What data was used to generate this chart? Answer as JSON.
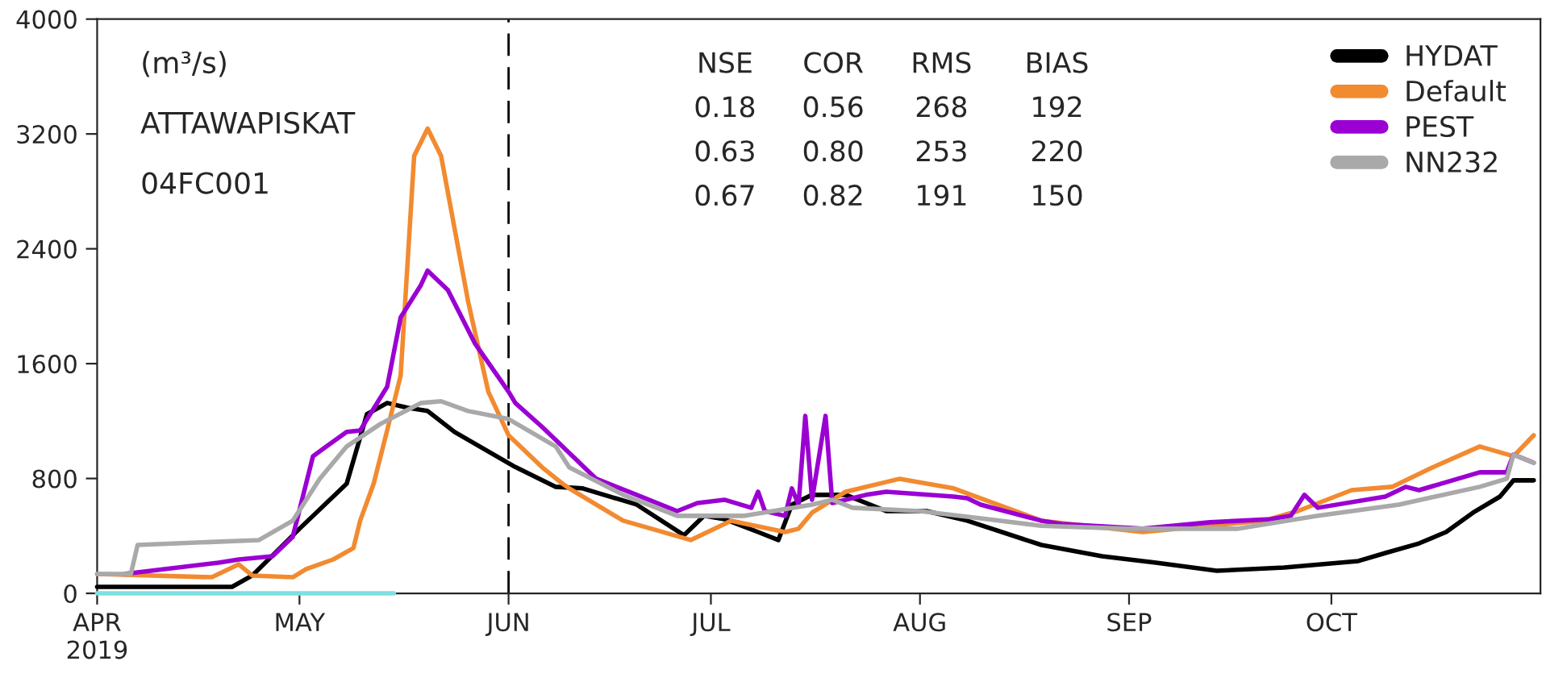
{
  "chart_data": {
    "type": "line",
    "annotations": [
      "(m³/s)",
      "ATTAWAPISKAT",
      "04FC001",
      "NSE",
      "COR",
      "RMS",
      "BIAS",
      "0.18",
      "0.56",
      "268",
      "192",
      "0.63",
      "0.80",
      "253",
      "220",
      "0.67",
      "0.82",
      "191",
      "150"
    ],
    "xlim": [
      "2019-04-01",
      "2019-11-01"
    ],
    "xticks": [
      {
        "value": "2019-04-01",
        "label": "APR\n2019"
      },
      {
        "value": "2019-05-01",
        "label": "MAY"
      },
      {
        "value": "2019-06-01",
        "label": "JUN"
      },
      {
        "value": "2019-07-01",
        "label": "JUL"
      },
      {
        "value": "2019-08-01",
        "label": "AUG"
      },
      {
        "value": "2019-09-01",
        "label": "SEP"
      },
      {
        "value": "2019-10-01",
        "label": "OCT"
      }
    ],
    "ylim": [
      0,
      4000
    ],
    "yticks": [
      0,
      800,
      1600,
      2400,
      3200,
      4000
    ],
    "grid": false,
    "legend": "top right",
    "ref_lines": [
      {
        "axis": "x",
        "value": "2019-06-01",
        "label": null,
        "color": "#000000",
        "line_style": "dashed"
      }
    ],
    "series": [
      {
        "color": "#7fdfdf",
        "x": [
          "2019-04-01",
          "2019-05-15"
        ],
        "values": [
          0,
          0
        ]
      },
      {
        "name": "HYDAT",
        "color": "#000000",
        "x": [
          "2019-04-01",
          "2019-04-21",
          "2019-04-24",
          "2019-05-01",
          "2019-05-08",
          "2019-05-11",
          "2019-05-14",
          "2019-05-17",
          "2019-05-20",
          "2019-05-24",
          "2019-06-02",
          "2019-06-08",
          "2019-06-12",
          "2019-06-20",
          "2019-06-27",
          "2019-06-30",
          "2019-07-03",
          "2019-07-08",
          "2019-07-11",
          "2019-07-13",
          "2019-07-16",
          "2019-07-21",
          "2019-07-27",
          "2019-08-02",
          "2019-08-08",
          "2019-08-19",
          "2019-08-28",
          "2019-09-05",
          "2019-09-14",
          "2019-09-24",
          "2019-10-05",
          "2019-10-09",
          "2019-10-14",
          "2019-10-18",
          "2019-10-22",
          "2019-10-26",
          "2019-10-28",
          "2019-10-31"
        ],
        "values": [
          45,
          45,
          124,
          450,
          764,
          1248,
          1326,
          1293,
          1270,
          1124,
          880,
          742,
          731,
          618,
          405,
          540,
          517,
          427,
          371,
          618,
          686,
          686,
          573,
          573,
          506,
          337,
          259,
          214,
          157,
          180,
          225,
          281,
          348,
          427,
          562,
          674,
          787,
          787
        ]
      },
      {
        "name": "Default",
        "color": "#f28a30",
        "x": [
          "2019-04-01",
          "2019-04-18",
          "2019-04-22",
          "2019-04-24",
          "2019-04-30",
          "2019-05-02",
          "2019-05-06",
          "2019-05-09",
          "2019-05-10",
          "2019-05-12",
          "2019-05-14",
          "2019-05-16",
          "2019-05-18",
          "2019-05-20",
          "2019-05-22",
          "2019-05-26",
          "2019-05-29",
          "2019-06-01",
          "2019-06-06",
          "2019-06-09",
          "2019-06-10",
          "2019-06-18",
          "2019-06-28",
          "2019-07-04",
          "2019-07-12",
          "2019-07-14",
          "2019-07-16",
          "2019-07-21",
          "2019-07-29",
          "2019-08-06",
          "2019-08-19",
          "2019-09-03",
          "2019-09-21",
          "2019-09-26",
          "2019-10-04",
          "2019-10-10",
          "2019-10-16",
          "2019-10-23",
          "2019-10-28",
          "2019-10-31"
        ],
        "values": [
          135,
          112,
          202,
          124,
          112,
          169,
          236,
          315,
          506,
          764,
          1135,
          1517,
          3046,
          3237,
          3046,
          2034,
          1405,
          1101,
          877,
          764,
          731,
          506,
          371,
          506,
          427,
          450,
          562,
          708,
          798,
          731,
          506,
          427,
          506,
          573,
          719,
          742,
          877,
          1023,
          955,
          1101
        ]
      },
      {
        "name": "PEST",
        "color": "#9b00d3",
        "x": [
          "2019-04-05",
          "2019-04-19",
          "2019-04-22",
          "2019-04-27",
          "2019-04-30",
          "2019-05-03",
          "2019-05-05",
          "2019-05-08",
          "2019-05-10",
          "2019-05-14",
          "2019-05-16",
          "2019-05-19",
          "2019-05-20",
          "2019-05-23",
          "2019-05-27",
          "2019-06-01",
          "2019-06-02",
          "2019-06-06",
          "2019-06-14",
          "2019-06-20",
          "2019-06-26",
          "2019-06-29",
          "2019-07-03",
          "2019-07-07",
          "2019-07-08",
          "2019-07-09",
          "2019-07-12",
          "2019-07-13",
          "2019-07-14",
          "2019-07-15",
          "2019-07-16",
          "2019-07-18",
          "2019-07-19",
          "2019-07-24",
          "2019-07-27",
          "2019-08-06",
          "2019-08-08",
          "2019-08-10",
          "2019-08-19",
          "2019-08-22",
          "2019-09-03",
          "2019-09-13",
          "2019-09-22",
          "2019-09-25",
          "2019-09-27",
          "2019-09-29",
          "2019-10-09",
          "2019-10-12",
          "2019-10-14",
          "2019-10-23",
          "2019-10-27",
          "2019-10-28",
          "2019-10-31"
        ],
        "values": [
          135,
          214,
          236,
          259,
          393,
          955,
          1023,
          1124,
          1135,
          1439,
          1922,
          2147,
          2248,
          2113,
          1742,
          1405,
          1326,
          1158,
          798,
          686,
          573,
          629,
          652,
          596,
          708,
          573,
          540,
          731,
          618,
          1236,
          652,
          1236,
          629,
          686,
          708,
          674,
          663,
          618,
          506,
          483,
          450,
          495,
          517,
          540,
          686,
          596,
          674,
          742,
          719,
          843,
          843,
          967,
          910
        ]
      },
      {
        "name": "NN232",
        "color": "#a9a9a9",
        "x": [
          "2019-04-01",
          "2019-04-06",
          "2019-04-07",
          "2019-04-25",
          "2019-04-30",
          "2019-05-04",
          "2019-05-08",
          "2019-05-13",
          "2019-05-19",
          "2019-05-22",
          "2019-05-26",
          "2019-06-01",
          "2019-06-08",
          "2019-06-10",
          "2019-06-18",
          "2019-06-26",
          "2019-07-06",
          "2019-07-16",
          "2019-07-19",
          "2019-07-22",
          "2019-08-01",
          "2019-08-11",
          "2019-08-19",
          "2019-09-01",
          "2019-09-17",
          "2019-09-29",
          "2019-10-11",
          "2019-10-23",
          "2019-10-27",
          "2019-10-28",
          "2019-10-31"
        ],
        "values": [
          135,
          135,
          337,
          371,
          506,
          798,
          1023,
          1180,
          1326,
          1338,
          1270,
          1214,
          1023,
          877,
          686,
          540,
          540,
          618,
          652,
          596,
          573,
          517,
          470,
          450,
          450,
          540,
          618,
          742,
          798,
          967,
          910
        ]
      }
    ]
  }
}
